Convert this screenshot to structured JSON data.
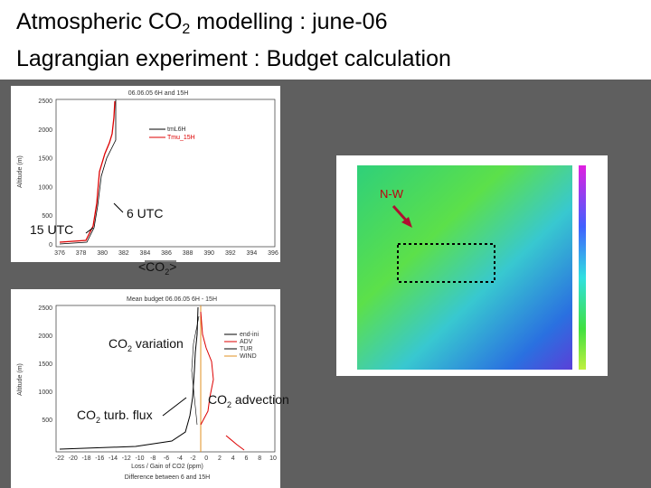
{
  "title": {
    "line1": "Atmospheric CO",
    "line1_sub": "2",
    "line1_rest": " modelling : june-06",
    "line2": "Lagrangian experiment : Budget calculation"
  },
  "top_plot": {
    "title": "06.06.05 6H and 15H",
    "y_label": "Altitude (m)",
    "yticks": [
      "2500",
      "2000",
      "1500",
      "1000",
      "500",
      "0"
    ],
    "xticks": [
      "376",
      "378",
      "380",
      "382",
      "384",
      "386",
      "388",
      "390",
      "392",
      "394",
      "396"
    ],
    "legend": [
      "tmL6H",
      "Tmu_15H"
    ]
  },
  "bottom_plot": {
    "title": "Mean budget 06.06.05 6H - 15H",
    "y_label": "Altitude (m)",
    "yticks": [
      "2500",
      "2000",
      "1500",
      "1000",
      "500"
    ],
    "xticks": [
      "-22",
      "-20",
      "-18",
      "-16",
      "-14",
      "-12",
      "-10",
      "-8",
      "-6",
      "-4",
      "-2",
      "0",
      "2",
      "4",
      "6",
      "8",
      "10"
    ],
    "x_label": "Loss / Gain of CO2 (ppm)",
    "x_label2": "Difference between 6 and 15H",
    "legend": [
      "end-ini",
      "ADV",
      "TUR",
      "WIND"
    ]
  },
  "annotations": {
    "utc15": "15 UTC",
    "utc6": "6 UTC",
    "co2_mean": "<CO",
    "co2_mean_sub": "2",
    "co2_mean_end": ">",
    "nw": "N-W",
    "variation": "CO",
    "variation_sub": "2",
    "variation_rest": " variation",
    "turb": "CO",
    "turb_sub": "2",
    "turb_rest": " turb. flux",
    "advection": "CO",
    "advection_sub": "2",
    "advection_rest": " advection"
  }
}
